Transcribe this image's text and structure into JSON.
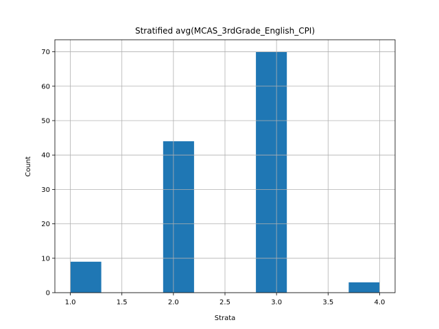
{
  "chart_data": {
    "type": "bar",
    "title": "Stratified avg(MCAS_3rdGrade_English_CPI)",
    "xlabel": "Strata",
    "ylabel": "Count",
    "xlim": [
      0.85,
      4.15
    ],
    "ylim": [
      0,
      73.5
    ],
    "grid": true,
    "bar_color": "#1f77b4",
    "grid_color": "#b0b0b0",
    "bins": [
      {
        "x0": 1.0,
        "x1": 1.3,
        "value": 9
      },
      {
        "x0": 1.3,
        "x1": 1.6,
        "value": 0
      },
      {
        "x0": 1.6,
        "x1": 1.9,
        "value": 0
      },
      {
        "x0": 1.9,
        "x1": 2.2,
        "value": 44
      },
      {
        "x0": 2.2,
        "x1": 2.5,
        "value": 0
      },
      {
        "x0": 2.5,
        "x1": 2.8,
        "value": 0
      },
      {
        "x0": 2.8,
        "x1": 3.1,
        "value": 70
      },
      {
        "x0": 3.1,
        "x1": 3.4,
        "value": 0
      },
      {
        "x0": 3.4,
        "x1": 3.7,
        "value": 0
      },
      {
        "x0": 3.7,
        "x1": 4.0,
        "value": 3
      }
    ],
    "xticks": [
      {
        "value": 1.0,
        "label": "1.0"
      },
      {
        "value": 1.5,
        "label": "1.5"
      },
      {
        "value": 2.0,
        "label": "2.0"
      },
      {
        "value": 2.5,
        "label": "2.5"
      },
      {
        "value": 3.0,
        "label": "3.0"
      },
      {
        "value": 3.5,
        "label": "3.5"
      },
      {
        "value": 4.0,
        "label": "4.0"
      }
    ],
    "yticks": [
      {
        "value": 0,
        "label": "0"
      },
      {
        "value": 10,
        "label": "10"
      },
      {
        "value": 20,
        "label": "20"
      },
      {
        "value": 30,
        "label": "30"
      },
      {
        "value": 40,
        "label": "40"
      },
      {
        "value": 50,
        "label": "50"
      },
      {
        "value": 60,
        "label": "60"
      },
      {
        "value": 70,
        "label": "70"
      }
    ]
  }
}
